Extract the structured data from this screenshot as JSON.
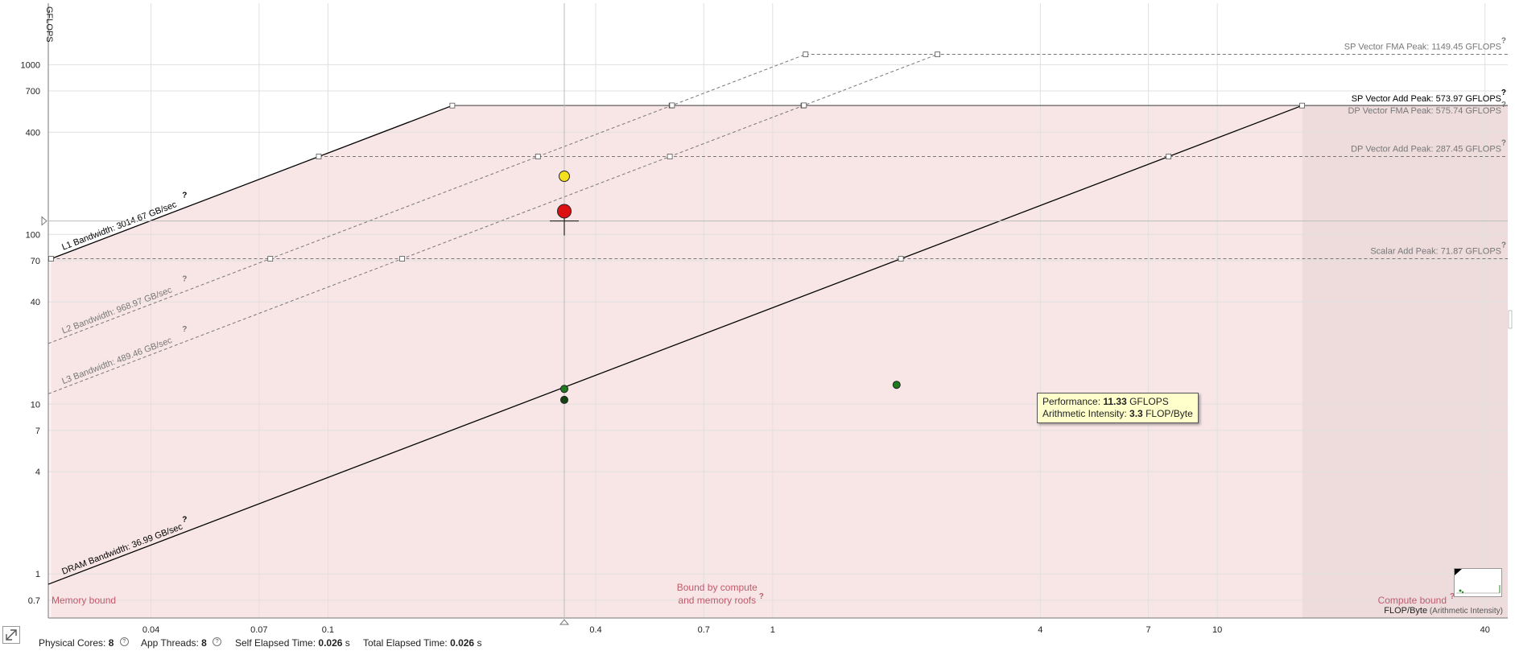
{
  "chart_data": {
    "type": "scatter",
    "scale": "log-log",
    "xlabel": "FLOP/Byte",
    "xlabel_suffix": "(Arithmetic Intensity)",
    "ylabel": "GFLOPS",
    "xlim": [
      0.0235,
      45
    ],
    "ylim": [
      0.55,
      2300
    ],
    "x_ticks": [
      0.04,
      0.07,
      0.1,
      0.4,
      0.7,
      1,
      4,
      7,
      10,
      40
    ],
    "y_ticks": [
      0.7,
      1,
      4,
      7,
      10,
      40,
      70,
      100,
      400,
      700,
      1000
    ],
    "compute_roofs": [
      {
        "label": "SP Vector FMA Peak: 1149.45 GFLOPS",
        "value": 1149.45,
        "style": "dashed",
        "color": "#777777"
      },
      {
        "label": "SP Vector Add Peak: 573.97 GFLOPS",
        "value": 573.97,
        "style": "solid",
        "color": "#000000"
      },
      {
        "label": "DP Vector FMA Peak: 575.74 GFLOPS",
        "value": 575.74,
        "style": "solid",
        "color": "#777777"
      },
      {
        "label": "DP Vector Add Peak: 287.45 GFLOPS",
        "value": 287.45,
        "style": "dashed",
        "color": "#777777"
      },
      {
        "label": "Scalar Add Peak: 71.87 GFLOPS",
        "value": 71.87,
        "style": "dashed",
        "color": "#777777"
      }
    ],
    "memory_roofs": [
      {
        "label": "L1 Bandwidth: 3014.67 GB/sec",
        "value": 3014.67,
        "style": "solid",
        "color": "#000000",
        "cap": 573.97
      },
      {
        "label": "L2 Bandwidth: 968.97 GB/sec",
        "value": 968.97,
        "style": "dashed",
        "color": "#777777",
        "cap": 1149.45
      },
      {
        "label": "L3 Bandwidth: 489.46 GB/sec",
        "value": 489.46,
        "style": "dashed",
        "color": "#777777",
        "cap": 1149.45
      },
      {
        "label": "DRAM Bandwidth: 36.99 GB/sec",
        "value": 36.99,
        "style": "solid",
        "color": "#000000",
        "cap": 573.97
      }
    ],
    "points": [
      {
        "x": 0.34,
        "y": 220,
        "color": "#f5e020",
        "size": "large"
      },
      {
        "x": 0.34,
        "y": 137,
        "color": "#dd1111",
        "size": "xlarge"
      },
      {
        "x": 0.34,
        "y": 12.3,
        "color": "#1e7a1e",
        "size": "small"
      },
      {
        "x": 0.34,
        "y": 10.6,
        "color": "#114411",
        "size": "small"
      },
      {
        "x": 1.9,
        "y": 13.0,
        "color": "#1e7a1e",
        "size": "small"
      }
    ],
    "crosshair": {
      "x": 0.34,
      "y": 120
    },
    "regions": {
      "memory": "Memory bound",
      "both_line1": "Bound by compute",
      "both_line2": "and memory roofs",
      "compute": "Compute bound"
    }
  },
  "tooltip": {
    "perf_label": "Performance:",
    "perf_value": "11.33",
    "perf_unit": "GFLOPS",
    "ai_label": "Arithmetic Intensity:",
    "ai_value": "3.3",
    "ai_unit": "FLOP/Byte"
  },
  "status": {
    "cores_label": "Physical Cores:",
    "cores_value": "8",
    "threads_label": "App Threads:",
    "threads_value": "8",
    "self_label": "Self Elapsed Time:",
    "self_value": "0.026",
    "self_unit": "s",
    "total_label": "Total Elapsed Time:",
    "total_value": "0.026",
    "total_unit": "s"
  },
  "icons": {
    "expand": "expand-icon",
    "help": "help-icon",
    "minimap": "minimap-thumbnail"
  }
}
